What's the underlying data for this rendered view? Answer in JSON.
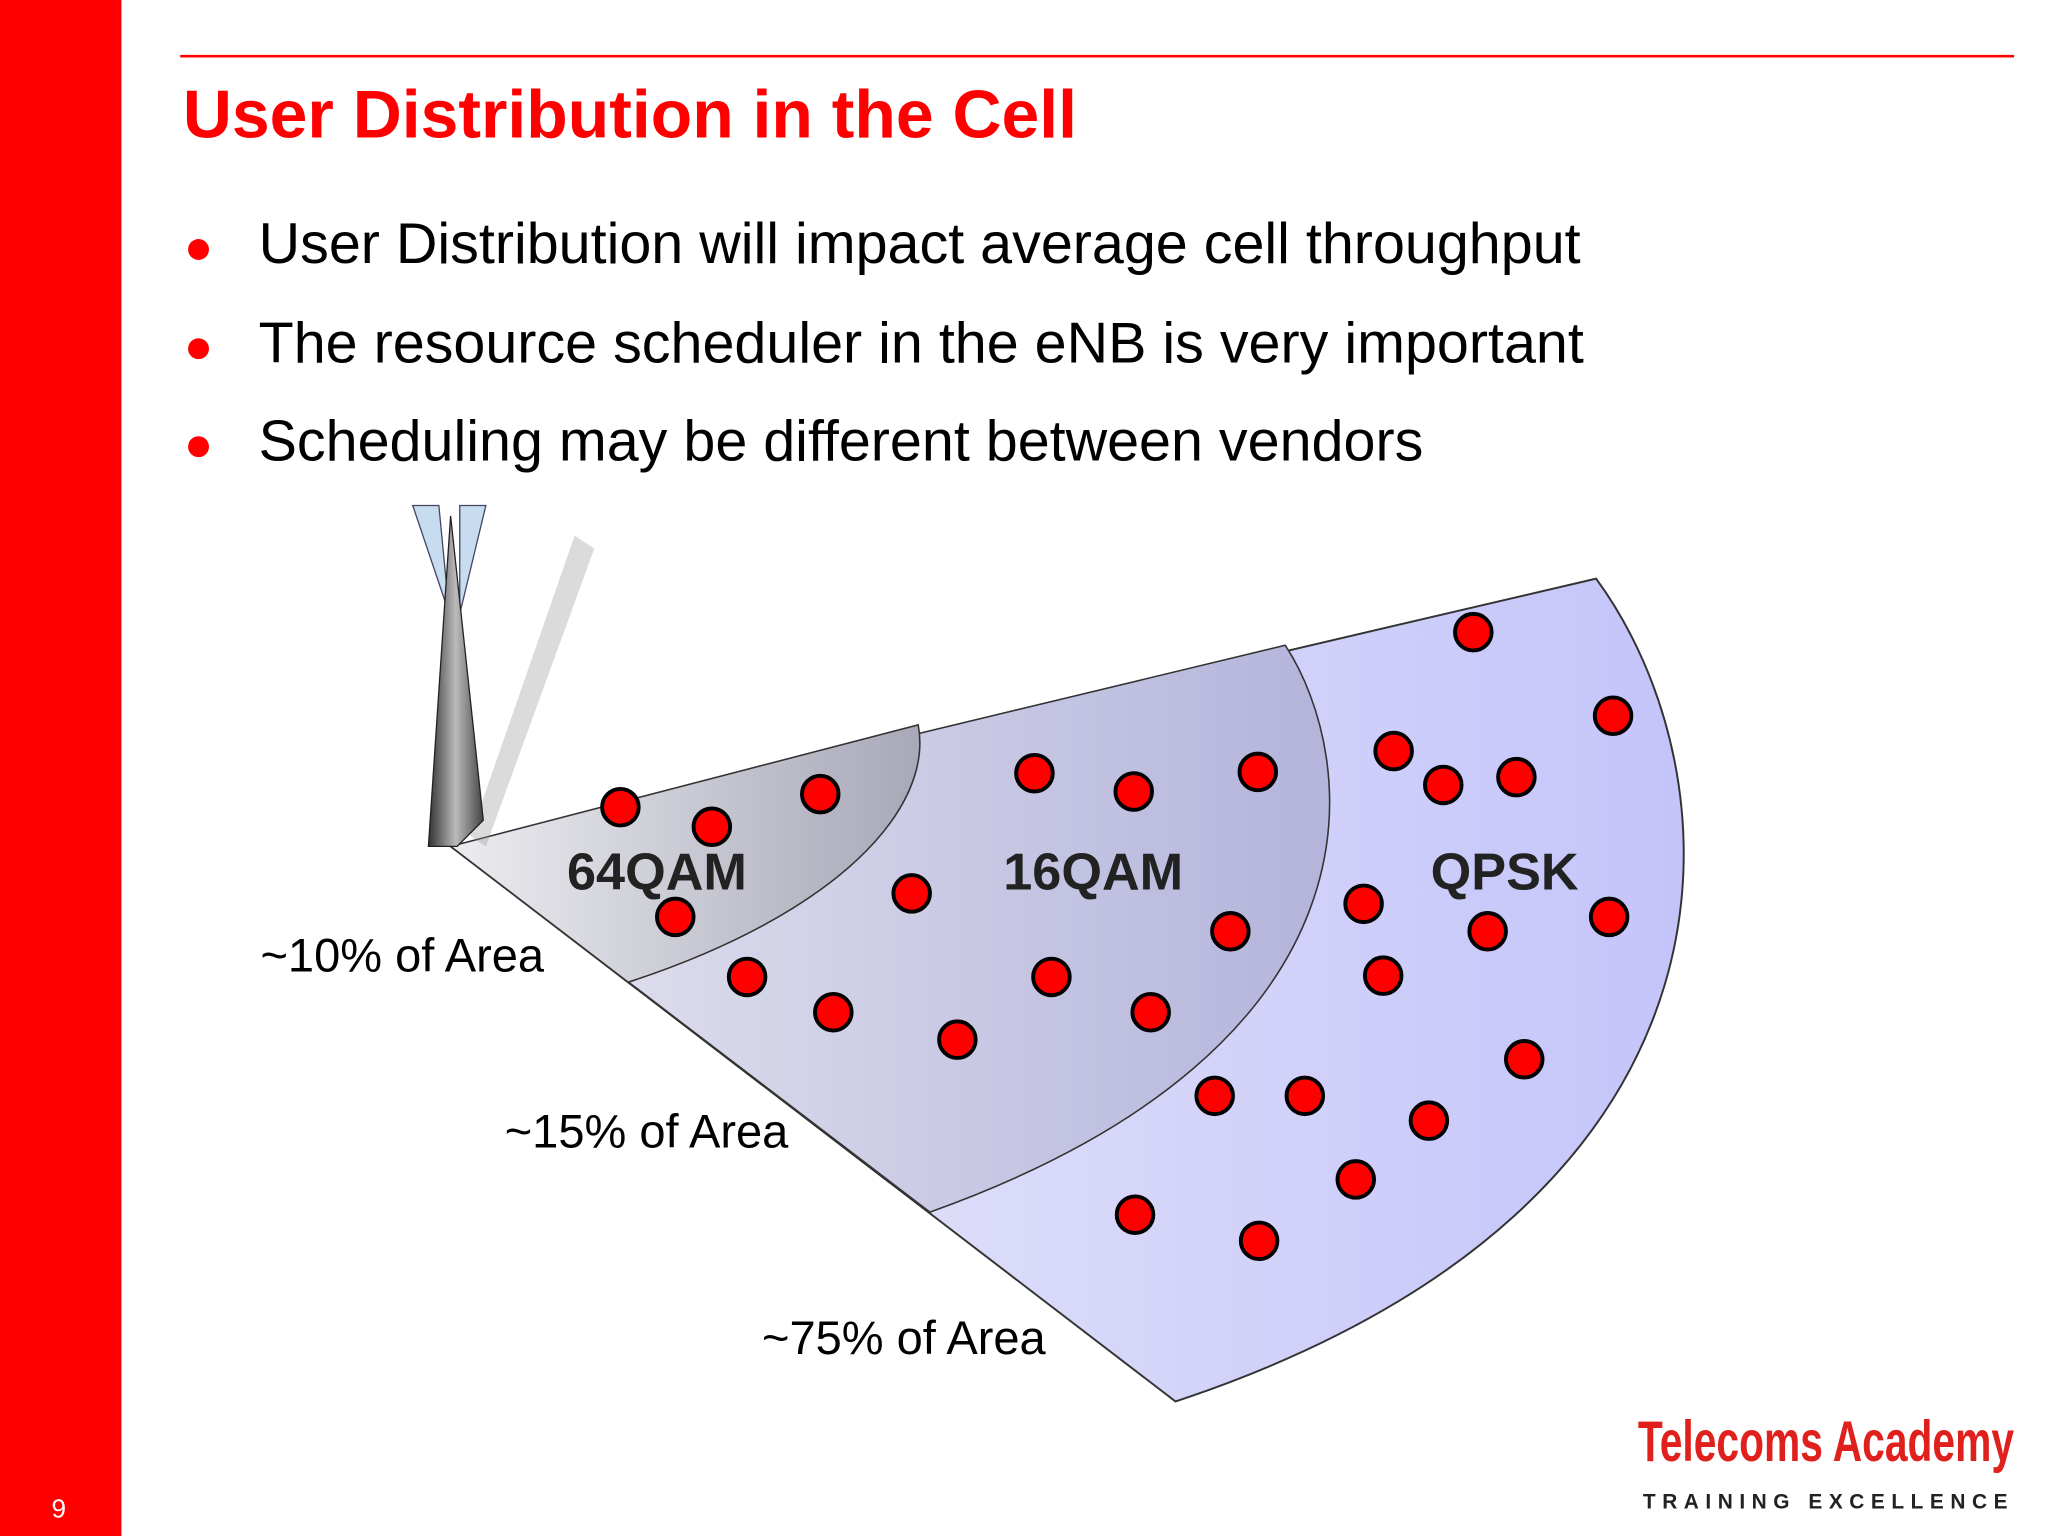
{
  "title": "User Distribution in the Cell",
  "bullets": [
    "User Distribution will impact average cell throughput",
    "The resource scheduler in the eNB is very important",
    "Scheduling may be different between vendors"
  ],
  "diagram": {
    "zones": [
      {
        "label": "64QAM",
        "area": "~10% of Area"
      },
      {
        "label": "16QAM",
        "area": "~15% of Area"
      },
      {
        "label": "QPSK",
        "area": "~75% of Area"
      }
    ]
  },
  "logo": {
    "name": "Telecoms Academy",
    "tagline": "TRAINING EXCELLENCE"
  },
  "page_number": "9"
}
